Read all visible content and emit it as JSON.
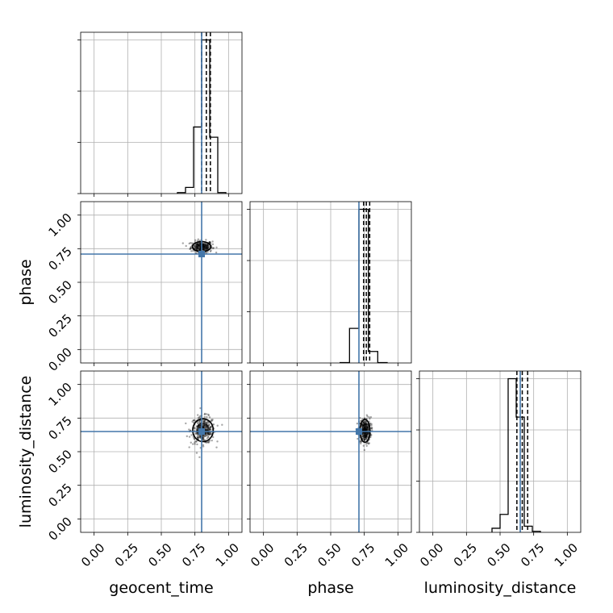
{
  "chart_data": {
    "type": "corner",
    "parameters": [
      "geocent_time",
      "phase",
      "luminosity_distance"
    ],
    "truths": {
      "geocent_time": 0.8,
      "phase": 0.71,
      "luminosity_distance": 0.65
    },
    "truth_color": "#4477aa",
    "axis_range": [
      -0.1,
      1.1
    ],
    "tick_values": [
      0.0,
      0.25,
      0.5,
      0.75,
      1.0
    ],
    "tick_labels": [
      "0.00",
      "0.25",
      "0.50",
      "0.75",
      "1.00"
    ],
    "grid": true,
    "histograms": {
      "geocent_time": {
        "bin_edges": [
          0.62,
          0.68,
          0.74,
          0.8,
          0.86,
          0.92,
          0.98
        ],
        "counts": [
          2,
          12,
          130,
          300,
          110,
          2
        ],
        "quantiles": [
          0.8,
          0.835,
          0.865
        ]
      },
      "phase": {
        "bin_edges": [
          0.57,
          0.64,
          0.71,
          0.78,
          0.85,
          0.92
        ],
        "counts": [
          1,
          90,
          400,
          30,
          1
        ],
        "quantiles": [
          0.745,
          0.765,
          0.79
        ]
      },
      "luminosity_distance": {
        "bin_edges": [
          0.44,
          0.5,
          0.56,
          0.62,
          0.68,
          0.74,
          0.8
        ],
        "counts": [
          8,
          35,
          300,
          225,
          12,
          2
        ],
        "quantiles": [
          0.625,
          0.665,
          0.705
        ]
      }
    },
    "scatter": {
      "phase_vs_geocent_time": {
        "x_center": 0.8,
        "y_center": 0.765,
        "x_sigma": 0.04,
        "y_sigma": 0.022,
        "n": 260
      },
      "luminosity_distance_vs_geocent_time": {
        "x_center": 0.81,
        "y_center": 0.66,
        "x_sigma": 0.045,
        "y_sigma": 0.05,
        "n": 300
      },
      "luminosity_distance_vs_phase": {
        "x_center": 0.755,
        "y_center": 0.655,
        "x_sigma": 0.022,
        "y_sigma": 0.05,
        "n": 300
      }
    }
  }
}
